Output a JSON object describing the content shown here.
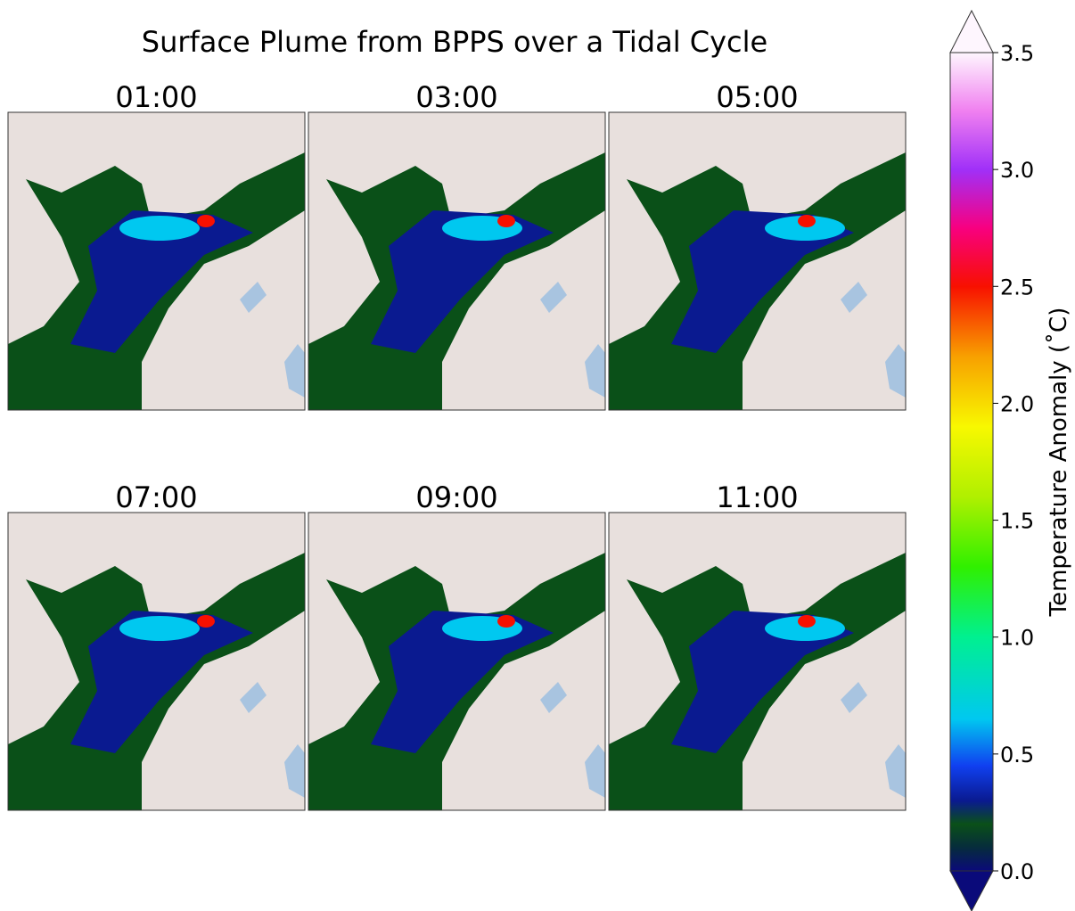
{
  "title": "Surface Plume from BPPS over a Tidal Cycle",
  "panels": [
    {
      "title": "01:00"
    },
    {
      "title": "03:00"
    },
    {
      "title": "05:00"
    },
    {
      "title": "07:00"
    },
    {
      "title": "09:00"
    },
    {
      "title": "11:00"
    }
  ],
  "colorbar": {
    "label": "Temperature Anomaly (˚C)",
    "lim": [
      0,
      3.5
    ],
    "ticks": [
      {
        "value": 0,
        "label": "0.0"
      },
      {
        "value": 0.5,
        "label": "0.5"
      },
      {
        "value": 1,
        "label": "1.0"
      },
      {
        "value": 1.5,
        "label": "1.5"
      },
      {
        "value": 2,
        "label": "2.0"
      },
      {
        "value": 2.5,
        "label": "2.5"
      },
      {
        "value": 3,
        "label": "3.0"
      },
      {
        "value": 3.5,
        "label": "3.5"
      }
    ],
    "colors": [
      {
        "value": 0,
        "color": "#0a0a7a"
      },
      {
        "value": 0.1,
        "color": "#062c3c"
      },
      {
        "value": 0.2,
        "color": "#0a5018"
      },
      {
        "value": 0.3,
        "color": "#0a1a90"
      },
      {
        "value": 0.45,
        "color": "#1040f0"
      },
      {
        "value": 0.65,
        "color": "#00c8f0"
      },
      {
        "value": 1.0,
        "color": "#00f090"
      },
      {
        "value": 1.3,
        "color": "#30f000"
      },
      {
        "value": 1.6,
        "color": "#b0f000"
      },
      {
        "value": 1.9,
        "color": "#f8f800"
      },
      {
        "value": 2.2,
        "color": "#f8a000"
      },
      {
        "value": 2.5,
        "color": "#f81000"
      },
      {
        "value": 2.75,
        "color": "#f80080"
      },
      {
        "value": 3.0,
        "color": "#a030f8"
      },
      {
        "value": 3.25,
        "color": "#f080f0"
      },
      {
        "value": 3.5,
        "color": "#fef6fe"
      }
    ]
  }
}
